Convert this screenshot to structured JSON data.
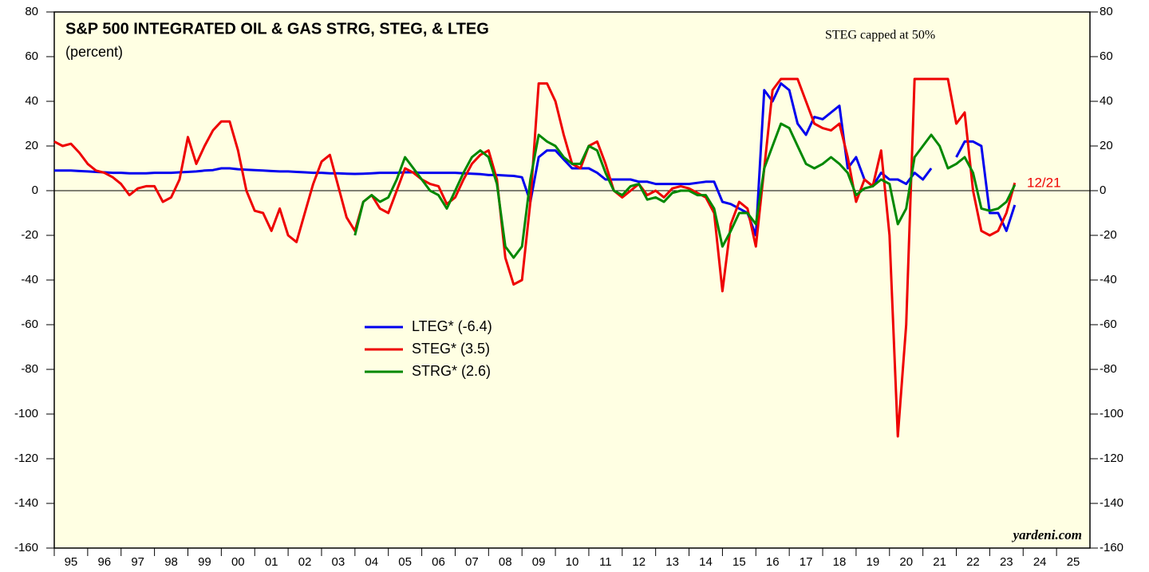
{
  "chart_data": {
    "type": "line",
    "title": "S&P 500 INTEGRATED OIL & GAS STRG, STEG, & LTEG",
    "subtitle": "(percent)",
    "annotations": [
      "STEG capped at 50%",
      "12/21",
      "yardeni.com"
    ],
    "x": [
      1995,
      1995.25,
      1995.5,
      1995.75,
      1996,
      1996.25,
      1996.5,
      1996.75,
      1997,
      1997.25,
      1997.5,
      1997.75,
      1998,
      1998.25,
      1998.5,
      1998.75,
      1999,
      1999.25,
      1999.5,
      1999.75,
      2000,
      2000.25,
      2000.5,
      2000.75,
      2001,
      2001.25,
      2001.5,
      2001.75,
      2002,
      2002.25,
      2002.5,
      2002.75,
      2003,
      2003.25,
      2003.5,
      2003.75,
      2004,
      2004.25,
      2004.5,
      2004.75,
      2005,
      2005.25,
      2005.5,
      2005.75,
      2006,
      2006.25,
      2006.5,
      2006.75,
      2007,
      2007.25,
      2007.5,
      2007.75,
      2008,
      2008.25,
      2008.5,
      2008.75,
      2009,
      2009.25,
      2009.5,
      2009.75,
      2010,
      2010.25,
      2010.5,
      2010.75,
      2011,
      2011.25,
      2011.5,
      2011.75,
      2012,
      2012.25,
      2012.5,
      2012.75,
      2013,
      2013.25,
      2013.5,
      2013.75,
      2014,
      2014.25,
      2014.5,
      2014.75,
      2015,
      2015.25,
      2015.5,
      2015.75,
      2016,
      2016.25,
      2016.5,
      2016.75,
      2017,
      2017.25,
      2017.5,
      2017.75,
      2018,
      2018.25,
      2018.5,
      2018.75,
      2019,
      2019.25,
      2019.5,
      2019.75,
      2020,
      2020.25,
      2020.5,
      2020.75,
      2021,
      2021.25,
      2021.5,
      2021.75,
      2022,
      2022.25,
      2022.5,
      2022.75,
      2023,
      2023.25,
      2023.5,
      2023.75
    ],
    "series": [
      {
        "name": "LTEG* (-6.4)",
        "color": "#0000ee",
        "values": [
          9,
          9,
          9,
          8.8,
          8.6,
          8.4,
          8.2,
          8,
          8,
          7.8,
          7.8,
          7.8,
          8,
          8,
          8,
          8.2,
          8.4,
          8.6,
          9,
          9.2,
          10,
          10,
          9.6,
          9.4,
          9.2,
          9,
          8.8,
          8.6,
          8.6,
          8.4,
          8.2,
          8,
          8,
          7.8,
          7.8,
          7.6,
          7.5,
          7.6,
          7.8,
          8,
          8,
          8,
          8.2,
          8.2,
          8,
          8,
          8,
          8,
          8,
          7.8,
          7.6,
          7.4,
          7,
          7,
          6.8,
          6.6,
          6,
          -5,
          15,
          18,
          18,
          14,
          10,
          10,
          10,
          8,
          5,
          5,
          5,
          5,
          4,
          4,
          3,
          3,
          3,
          3,
          3,
          3.5,
          4,
          4,
          -5,
          -6,
          -8,
          -10,
          -20,
          45,
          40,
          48,
          45,
          30,
          25,
          33,
          32,
          35,
          38,
          10,
          15,
          5,
          2,
          8,
          5,
          5,
          3,
          8,
          5,
          10,
          null,
          null,
          15,
          22,
          22,
          20,
          -10,
          -10,
          -18,
          -6.4
        ]
      },
      {
        "name": "STEG* (3.5)",
        "color": "#ee0000",
        "values": [
          22,
          20,
          21,
          17,
          12,
          9,
          8,
          6,
          3,
          -2,
          1,
          2,
          2,
          -5,
          -3,
          5,
          24,
          12,
          20,
          27,
          31,
          31,
          18,
          0,
          -9,
          -10,
          -18,
          -8,
          -20,
          -23,
          -10,
          3,
          13,
          16,
          2,
          -12,
          -18,
          -5,
          -2,
          -8,
          -10,
          0,
          10,
          8,
          5,
          3,
          2,
          -6,
          -3,
          5,
          12,
          16,
          18,
          5,
          -30,
          -42,
          -40,
          -5,
          48,
          48,
          40,
          25,
          12,
          10,
          20,
          22,
          12,
          0,
          -3,
          0,
          3,
          -2,
          0,
          -3,
          1,
          2,
          1,
          -1,
          -3,
          -10,
          -45,
          -15,
          -5,
          -8,
          -25,
          10,
          45,
          50,
          50,
          50,
          40,
          30,
          28,
          27,
          30,
          15,
          -5,
          5,
          2,
          18,
          -20,
          -110,
          -60,
          50,
          50,
          50,
          50,
          50,
          30,
          35,
          0,
          -18,
          -20,
          -18,
          -10,
          3.5
        ]
      },
      {
        "name": "STRG* (2.6)",
        "color": "#008800",
        "values": [
          null,
          null,
          null,
          null,
          null,
          null,
          null,
          null,
          null,
          null,
          null,
          null,
          null,
          null,
          null,
          null,
          null,
          null,
          null,
          null,
          null,
          null,
          null,
          null,
          null,
          null,
          null,
          null,
          null,
          null,
          null,
          null,
          null,
          null,
          null,
          null,
          -20,
          -5,
          -2,
          -5,
          -3,
          5,
          15,
          10,
          5,
          0,
          -2,
          -8,
          0,
          8,
          15,
          18,
          15,
          3,
          -25,
          -30,
          -25,
          5,
          25,
          22,
          20,
          15,
          12,
          12,
          20,
          18,
          8,
          0,
          -2,
          2,
          3,
          -4,
          -3,
          -5,
          -1,
          0,
          0,
          -2,
          -2,
          -8,
          -25,
          -18,
          -10,
          -10,
          -15,
          10,
          20,
          30,
          28,
          20,
          12,
          10,
          12,
          15,
          12,
          8,
          -2,
          1,
          2,
          5,
          3,
          -15,
          -8,
          15,
          20,
          25,
          20,
          10,
          12,
          15,
          8,
          -8,
          -9,
          -8,
          -5,
          2.6
        ]
      }
    ],
    "xlim": [
      1995,
      2026
    ],
    "xticks": [
      {
        "value": 1995,
        "label": "95"
      },
      {
        "value": 1996,
        "label": "96"
      },
      {
        "value": 1997,
        "label": "97"
      },
      {
        "value": 1998,
        "label": "98"
      },
      {
        "value": 1999,
        "label": "99"
      },
      {
        "value": 2000,
        "label": "00"
      },
      {
        "value": 2001,
        "label": "01"
      },
      {
        "value": 2002,
        "label": "02"
      },
      {
        "value": 2003,
        "label": "03"
      },
      {
        "value": 2004,
        "label": "04"
      },
      {
        "value": 2005,
        "label": "05"
      },
      {
        "value": 2006,
        "label": "06"
      },
      {
        "value": 2007,
        "label": "07"
      },
      {
        "value": 2008,
        "label": "08"
      },
      {
        "value": 2009,
        "label": "09"
      },
      {
        "value": 2010,
        "label": "10"
      },
      {
        "value": 2011,
        "label": "11"
      },
      {
        "value": 2012,
        "label": "12"
      },
      {
        "value": 2013,
        "label": "13"
      },
      {
        "value": 2014,
        "label": "14"
      },
      {
        "value": 2015,
        "label": "15"
      },
      {
        "value": 2016,
        "label": "16"
      },
      {
        "value": 2017,
        "label": "17"
      },
      {
        "value": 2018,
        "label": "18"
      },
      {
        "value": 2019,
        "label": "19"
      },
      {
        "value": 2020,
        "label": "20"
      },
      {
        "value": 2021,
        "label": "21"
      },
      {
        "value": 2022,
        "label": "22"
      },
      {
        "value": 2023,
        "label": "23"
      },
      {
        "value": 2024,
        "label": "24"
      },
      {
        "value": 2025,
        "label": "25"
      }
    ],
    "ylim": [
      -160,
      80
    ],
    "yticks": [
      80,
      60,
      40,
      20,
      0,
      -20,
      -40,
      -60,
      -80,
      -100,
      -120,
      -140,
      -160
    ],
    "y2lim": [
      -160,
      80
    ],
    "y2ticks": [
      80,
      60,
      40,
      20,
      0,
      -20,
      -40,
      -60,
      -80,
      -100,
      -120,
      -140,
      -160
    ],
    "legend": "center"
  }
}
